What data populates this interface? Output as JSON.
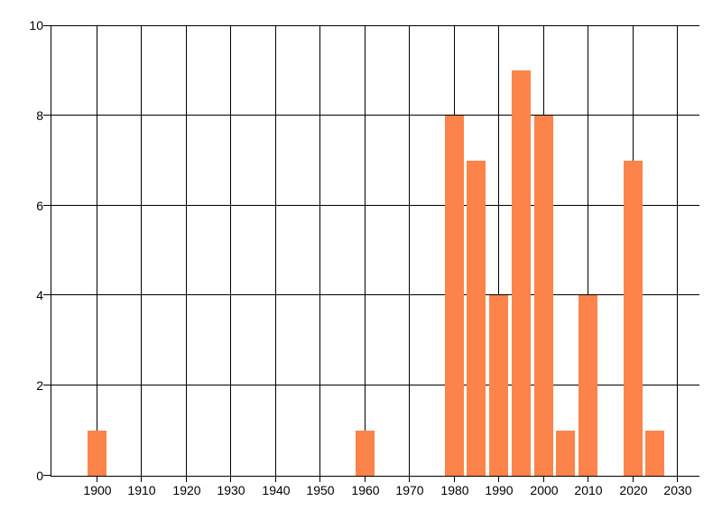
{
  "chart_data": {
    "type": "bar",
    "title": "",
    "xlabel": "",
    "ylabel": "",
    "x": [
      1900,
      1960,
      1980,
      1985,
      1990,
      1995,
      2000,
      2005,
      2010,
      2020,
      2025
    ],
    "values": [
      1,
      1,
      8,
      7,
      4,
      9,
      8,
      1,
      4,
      7,
      1
    ],
    "x_ticks": [
      {
        "value": 1900,
        "label": "1900"
      },
      {
        "value": 1910,
        "label": "1910"
      },
      {
        "value": 1920,
        "label": "1920"
      },
      {
        "value": 1930,
        "label": "1930"
      },
      {
        "value": 1940,
        "label": "1940"
      },
      {
        "value": 1950,
        "label": "1950"
      },
      {
        "value": 1960,
        "label": "1960"
      },
      {
        "value": 1970,
        "label": "1970"
      },
      {
        "value": 1980,
        "label": "1980"
      },
      {
        "value": 1990,
        "label": "1990"
      },
      {
        "value": 2000,
        "label": "2000"
      },
      {
        "value": 2010,
        "label": "2010"
      },
      {
        "value": 2020,
        "label": "2020"
      },
      {
        "value": 2030,
        "label": "2030"
      }
    ],
    "y_ticks": [
      {
        "value": 0,
        "label": "0"
      },
      {
        "value": 2,
        "label": "2"
      },
      {
        "value": 4,
        "label": "4"
      },
      {
        "value": 6,
        "label": "6"
      },
      {
        "value": 8,
        "label": "8"
      },
      {
        "value": 10,
        "label": "10"
      }
    ],
    "xlim": [
      1890,
      2035
    ],
    "ylim": [
      0,
      10
    ],
    "grid": true,
    "legend": false,
    "colors": {
      "bar": "#fc8349",
      "grid": "#000000",
      "axis": "#000000",
      "text": "#000000"
    }
  }
}
